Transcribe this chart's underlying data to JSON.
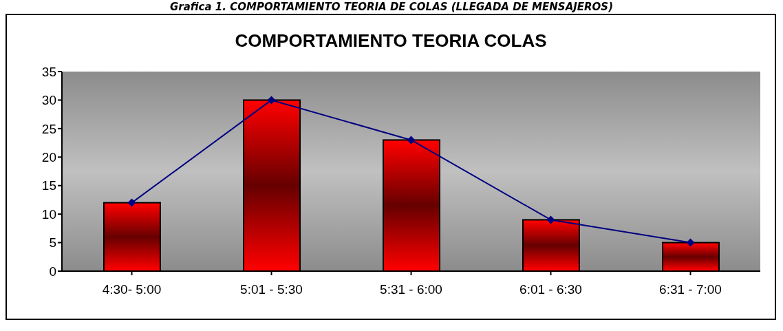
{
  "chart_data": {
    "type": "bar",
    "title": "COMPORTAMIENTO TEORIA COLAS",
    "annotations": [
      "Grafica 1. COMPORTAMIENTO TEORIA DE COLAS (LLEGADA DE MENSAJEROS)"
    ],
    "categories": [
      "4:30- 5:00",
      "5:01 - 5:30",
      "5:31 - 6:00",
      "6:01 - 6:30",
      "6:31 - 7:00"
    ],
    "series": [
      {
        "color": "#ff0000",
        "values": [
          12,
          30,
          23,
          9,
          5
        ]
      },
      {
        "type": "line",
        "color": "#000080",
        "values": [
          12,
          30,
          23,
          9,
          5
        ],
        "marker": "diamond"
      }
    ],
    "ylim": [
      0,
      35
    ],
    "yticks": [
      0,
      5,
      10,
      15,
      20,
      25,
      30,
      35
    ],
    "grid": false,
    "legend": false
  }
}
